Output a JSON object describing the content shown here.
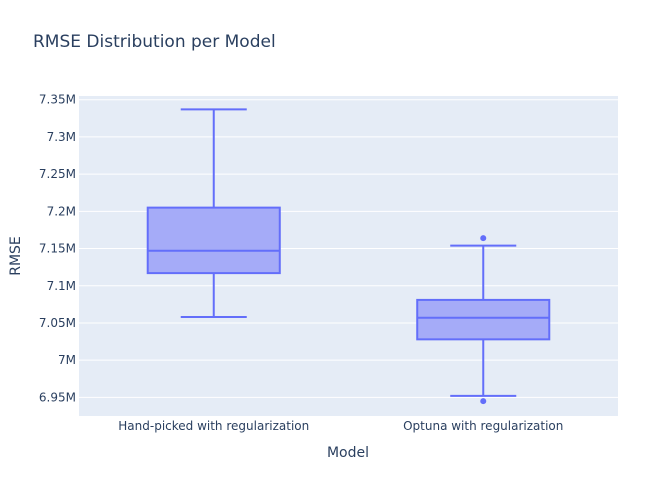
{
  "chart_data": {
    "type": "box",
    "title": "RMSE Distribution per Model",
    "xlabel": "Model",
    "ylabel": "RMSE",
    "ylim": [
      6.925,
      7.355
    ],
    "y_ticks": [
      6.95,
      7.0,
      7.05,
      7.1,
      7.15,
      7.2,
      7.25,
      7.3,
      7.35
    ],
    "y_tick_labels": [
      "6.95M",
      "7M",
      "7.05M",
      "7.1M",
      "7.15M",
      "7.2M",
      "7.25M",
      "7.3M",
      "7.35M"
    ],
    "y_unit": "M",
    "grid": true,
    "colors": {
      "box_line": "#636efa",
      "box_fill": "#a5abf8",
      "plot_bg": "#e5ecf6",
      "grid": "#ffffff"
    },
    "categories": [
      "Hand-picked with regularization",
      "Optuna with regularization"
    ],
    "boxes": [
      {
        "category": "Hand-picked with regularization",
        "min": 7.058,
        "q1": 7.117,
        "median": 7.147,
        "q3": 7.205,
        "max": 7.337,
        "outliers": []
      },
      {
        "category": "Optuna with regularization",
        "min": 6.952,
        "q1": 7.028,
        "median": 7.057,
        "q3": 7.081,
        "max": 7.154,
        "outliers": [
          7.164,
          6.945
        ]
      }
    ]
  }
}
